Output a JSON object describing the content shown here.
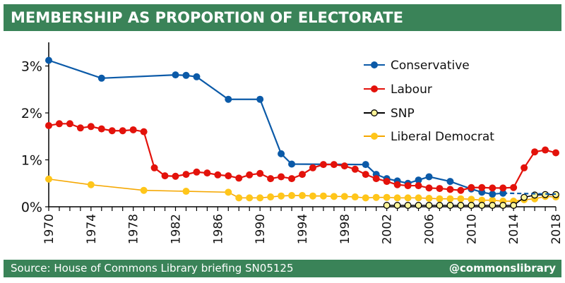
{
  "header": {
    "title": "MEMBERSHIP AS PROPORTION OF ELECTORATE"
  },
  "footer": {
    "source": "Source: House of Commons Library briefing SN05125",
    "handle": "@commonslibrary"
  },
  "colors": {
    "brand_green": "#3a8358"
  },
  "chart_data": {
    "type": "line",
    "title": "MEMBERSHIP AS PROPORTION OF ELECTORATE",
    "xlabel": "",
    "ylabel": "",
    "xlim": [
      1970,
      2018
    ],
    "ylim": [
      0,
      3.5
    ],
    "x_ticks": [
      1970,
      1974,
      1978,
      1982,
      1986,
      1990,
      1994,
      1998,
      2002,
      2006,
      2010,
      2014,
      2018
    ],
    "y_ticks": [
      {
        "value": 0,
        "label": "0%"
      },
      {
        "value": 1,
        "label": "1%"
      },
      {
        "value": 2,
        "label": "2%"
      },
      {
        "value": 3,
        "label": "3%"
      }
    ],
    "grid": false,
    "legend": "top-right",
    "series": [
      {
        "name": "Conservative",
        "color": "#0b5aa8",
        "marker_fill": "#0b5aa8",
        "points": [
          [
            1970,
            3.12
          ],
          [
            1975,
            2.74
          ],
          [
            1982,
            2.81
          ],
          [
            1983,
            2.8
          ],
          [
            1984,
            2.77
          ],
          [
            1987,
            2.29
          ],
          [
            1990,
            2.29
          ],
          [
            1992,
            1.13
          ],
          [
            1993,
            0.91
          ],
          [
            2000,
            0.9
          ],
          [
            2001,
            0.69
          ],
          [
            2002,
            0.6
          ],
          [
            2003,
            0.55
          ],
          [
            2004,
            0.5
          ],
          [
            2005,
            0.57
          ],
          [
            2006,
            0.64
          ],
          [
            2008,
            0.54
          ],
          [
            2010,
            0.38
          ],
          [
            2011,
            0.31
          ],
          [
            2012,
            0.27
          ],
          [
            2013,
            0.29
          ]
        ],
        "dashed_extension": [
          [
            2013,
            0.29
          ],
          [
            2018,
            0.27
          ]
        ]
      },
      {
        "name": "Labour",
        "color": "#e3120b",
        "marker_fill": "#e3120b",
        "points": [
          [
            1970,
            1.73
          ],
          [
            1971,
            1.77
          ],
          [
            1972,
            1.77
          ],
          [
            1973,
            1.68
          ],
          [
            1974,
            1.71
          ],
          [
            1975,
            1.66
          ],
          [
            1976,
            1.62
          ],
          [
            1977,
            1.62
          ],
          [
            1978,
            1.64
          ],
          [
            1979,
            1.6
          ],
          [
            1980,
            0.83
          ],
          [
            1981,
            0.66
          ],
          [
            1982,
            0.65
          ],
          [
            1983,
            0.69
          ],
          [
            1984,
            0.74
          ],
          [
            1985,
            0.72
          ],
          [
            1986,
            0.68
          ],
          [
            1987,
            0.66
          ],
          [
            1988,
            0.61
          ],
          [
            1989,
            0.68
          ],
          [
            1990,
            0.71
          ],
          [
            1991,
            0.6
          ],
          [
            1992,
            0.64
          ],
          [
            1993,
            0.6
          ],
          [
            1994,
            0.69
          ],
          [
            1995,
            0.83
          ],
          [
            1996,
            0.9
          ],
          [
            1997,
            0.9
          ],
          [
            1998,
            0.87
          ],
          [
            1999,
            0.8
          ],
          [
            2000,
            0.69
          ],
          [
            2001,
            0.6
          ],
          [
            2002,
            0.54
          ],
          [
            2003,
            0.47
          ],
          [
            2004,
            0.45
          ],
          [
            2005,
            0.45
          ],
          [
            2006,
            0.4
          ],
          [
            2007,
            0.39
          ],
          [
            2008,
            0.37
          ],
          [
            2009,
            0.35
          ],
          [
            2010,
            0.41
          ],
          [
            2011,
            0.41
          ],
          [
            2012,
            0.4
          ],
          [
            2013,
            0.4
          ],
          [
            2014,
            0.41
          ],
          [
            2015,
            0.83
          ],
          [
            2016,
            1.17
          ],
          [
            2017,
            1.21
          ],
          [
            2018,
            1.15
          ]
        ]
      },
      {
        "name": "SNP",
        "color": "#000000",
        "marker_fill": "#fff59a",
        "points": [
          [
            2002,
            0.03
          ],
          [
            2003,
            0.03
          ],
          [
            2004,
            0.03
          ],
          [
            2005,
            0.03
          ],
          [
            2006,
            0.03
          ],
          [
            2007,
            0.03
          ],
          [
            2008,
            0.03
          ],
          [
            2009,
            0.03
          ],
          [
            2010,
            0.03
          ],
          [
            2011,
            0.03
          ],
          [
            2012,
            0.03
          ],
          [
            2013,
            0.03
          ],
          [
            2014,
            0.03
          ],
          [
            2015,
            0.2
          ],
          [
            2016,
            0.25
          ],
          [
            2017,
            0.26
          ],
          [
            2018,
            0.26
          ]
        ]
      },
      {
        "name": "Liberal Democrat",
        "color": "#f5a700",
        "marker_fill": "#ffc61a",
        "points": [
          [
            1970,
            0.59
          ],
          [
            1974,
            0.47
          ],
          [
            1979,
            0.35
          ],
          [
            1983,
            0.33
          ],
          [
            1987,
            0.31
          ],
          [
            1988,
            0.19
          ],
          [
            1989,
            0.19
          ],
          [
            1990,
            0.19
          ],
          [
            1991,
            0.21
          ],
          [
            1992,
            0.23
          ],
          [
            1993,
            0.24
          ],
          [
            1994,
            0.24
          ],
          [
            1995,
            0.23
          ],
          [
            1996,
            0.23
          ],
          [
            1997,
            0.22
          ],
          [
            1998,
            0.22
          ],
          [
            1999,
            0.21
          ],
          [
            2000,
            0.19
          ],
          [
            2001,
            0.2
          ],
          [
            2002,
            0.2
          ],
          [
            2003,
            0.19
          ],
          [
            2004,
            0.19
          ],
          [
            2005,
            0.19
          ],
          [
            2006,
            0.18
          ],
          [
            2007,
            0.17
          ],
          [
            2008,
            0.17
          ],
          [
            2009,
            0.17
          ],
          [
            2010,
            0.16
          ],
          [
            2011,
            0.14
          ],
          [
            2012,
            0.14
          ],
          [
            2013,
            0.12
          ],
          [
            2014,
            0.12
          ],
          [
            2015,
            0.15
          ],
          [
            2016,
            0.17
          ],
          [
            2017,
            0.22
          ],
          [
            2018,
            0.21
          ]
        ]
      }
    ]
  }
}
